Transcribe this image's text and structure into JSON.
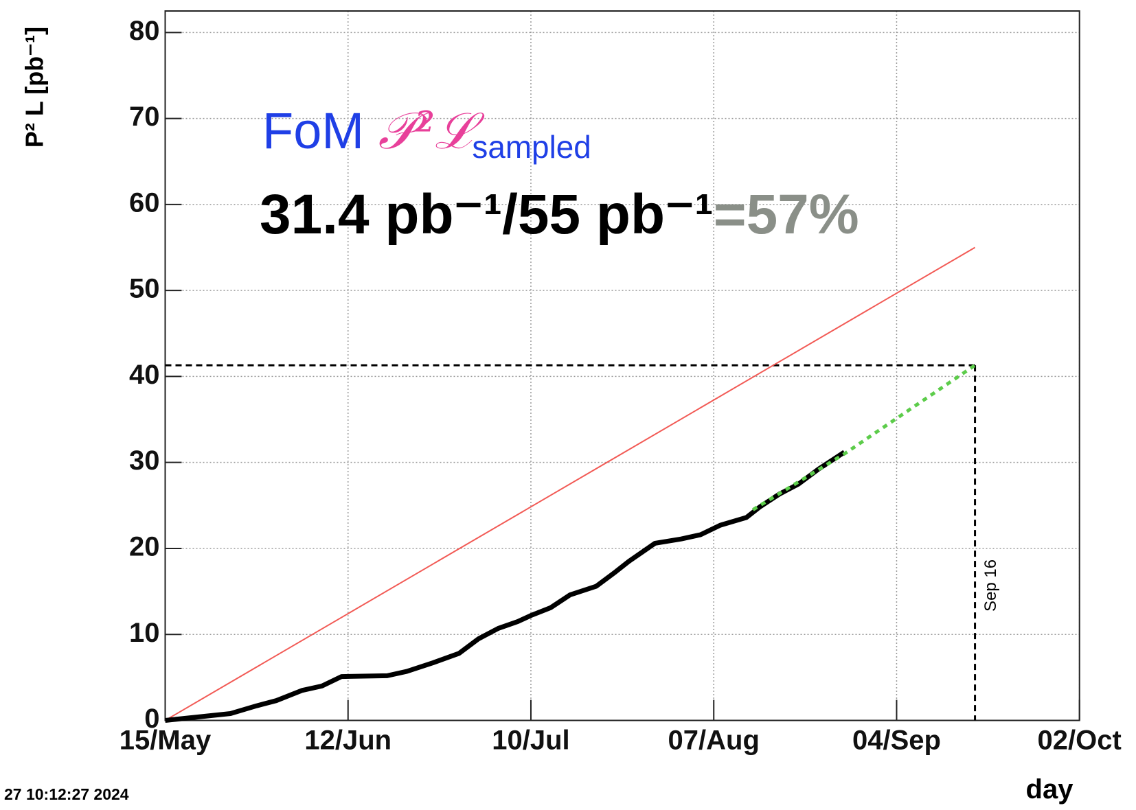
{
  "chart_data": {
    "type": "line",
    "ylabel": "P² L [pb⁻¹]",
    "xlabel": "day",
    "timestamp": "27 10:12:27 2024",
    "xlim": [
      0,
      140
    ],
    "xticks": [
      {
        "value": 0,
        "label": "15/May"
      },
      {
        "value": 28,
        "label": "12/Jun"
      },
      {
        "value": 56,
        "label": "10/Jul"
      },
      {
        "value": 84,
        "label": "07/Aug"
      },
      {
        "value": 112,
        "label": "04/Sep"
      },
      {
        "value": 140,
        "label": "02/Oct"
      }
    ],
    "ylim": [
      0,
      82.5
    ],
    "yticks": [
      0,
      10,
      20,
      30,
      40,
      50,
      60,
      70,
      80
    ],
    "grid": true,
    "series": [
      {
        "name": "target",
        "color": "#f25a55",
        "style": "solid",
        "width": 2,
        "x": [
          0,
          124
        ],
        "values": [
          0,
          55
        ]
      },
      {
        "name": "sampled",
        "color": "#000000",
        "style": "solid",
        "width": 7,
        "x": [
          0,
          5,
          10,
          14,
          17,
          21,
          24,
          27,
          34,
          37,
          41,
          45,
          48,
          51,
          54,
          56,
          59,
          62,
          66,
          69,
          71,
          75,
          79,
          82,
          85,
          89,
          91,
          94,
          97,
          100,
          104
        ],
        "values": [
          0,
          0.4,
          0.8,
          1.7,
          2.3,
          3.5,
          4,
          5.1,
          5.2,
          5.7,
          6.7,
          7.8,
          9.5,
          10.7,
          11.5,
          12.2,
          13.1,
          14.6,
          15.6,
          17.3,
          18.5,
          20.6,
          21.1,
          21.6,
          22.7,
          23.6,
          24.8,
          26.3,
          27.5,
          29.2,
          31.2
        ]
      },
      {
        "name": "projection",
        "color": "#5ccc4a",
        "style": "dotted",
        "width": 5,
        "x": [
          90,
          104,
          124
        ],
        "values": [
          24.5,
          31,
          41.3
        ]
      }
    ],
    "reference": {
      "x": 124,
      "y": 41.3,
      "label": "Sep 16",
      "color": "#000000"
    },
    "annotations": [
      {
        "parts": [
          {
            "text": "FoM ",
            "color": "#1f3fe6"
          },
          {
            "text": "𝒫²ℒ",
            "color": "#e8409a"
          },
          {
            "text": "sampled",
            "color": "#1f3fe6",
            "subscript": true
          }
        ]
      },
      {
        "parts": [
          {
            "text": "31.4 pb⁻¹/55 pb⁻¹",
            "color": "#000000"
          },
          {
            "text": "=57%",
            "color": "#8a8f88"
          }
        ]
      }
    ]
  }
}
